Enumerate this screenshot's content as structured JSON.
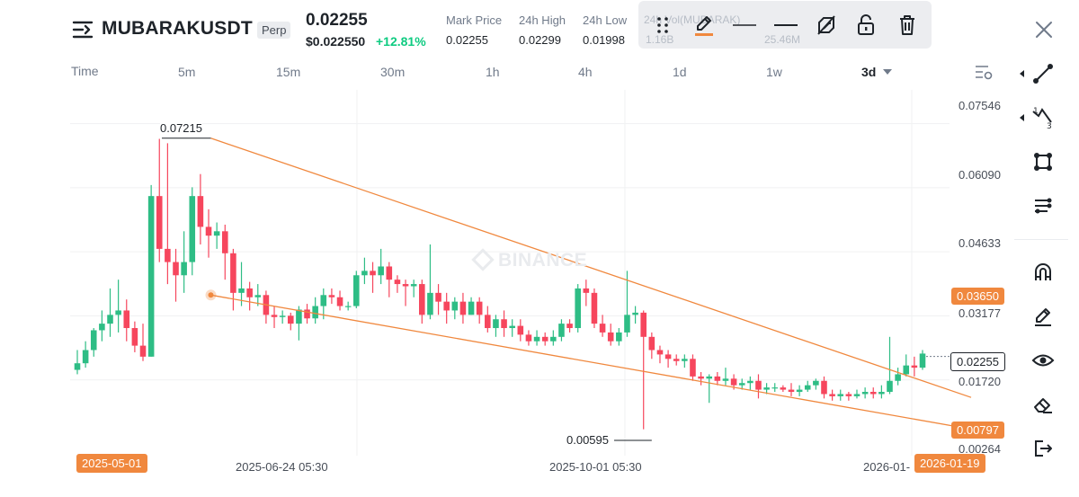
{
  "header": {
    "symbol": "MUBARAKUSDT",
    "contract_type": "Perp",
    "last_price": "0.02255",
    "usd_price": "$0.022550",
    "change_pct": "+12.81%",
    "stats": [
      {
        "label": "Mark Price",
        "value": "0.02255"
      },
      {
        "label": "24h High",
        "value": "0.02299"
      },
      {
        "label": "24h Low",
        "value": "0.01998"
      }
    ],
    "hidden_stats": [
      "24h Vol(MUBARAK)",
      "1.16B",
      "25.46M"
    ]
  },
  "intervals": {
    "time_label": "Time",
    "items": [
      "5m",
      "15m",
      "30m",
      "1h",
      "4h",
      "1d",
      "1w",
      "3d"
    ],
    "active": "3d"
  },
  "drawing_toolbar": [
    "drag-handle-icon",
    "pencil-icon",
    "line-style-icon",
    "line-width-icon",
    "hide-drawing-icon",
    "unlock-icon",
    "trash-icon"
  ],
  "right_toolbar": [
    "trend-line-icon",
    "fibonacci-icon",
    "rectangle-icon",
    "brush-icon",
    "magnet-icon",
    "pencil-icon",
    "eye-icon",
    "eraser-icon",
    "exit-icon"
  ],
  "chart": {
    "watermark": "BINANCE",
    "price_ticks": [
      "0.07546",
      "0.06090",
      "0.04633",
      "0.03177",
      "0.01720",
      "0.00264"
    ],
    "price_tags": {
      "upper_line": "0.03650",
      "current": "0.02255",
      "lower_line": "0.00797"
    },
    "date_ticks": [
      "2025-06-24 05:30",
      "2025-10-01 05:30",
      "2026-01-"
    ],
    "date_tags": {
      "start": "2025-05-01",
      "end": "2026-01-19"
    },
    "annotations": {
      "high": "0.07215",
      "low": "0.00595"
    },
    "colors": {
      "up": "#2ebd85",
      "down": "#f6465d",
      "trendline": "#f0883e"
    }
  },
  "chart_data": {
    "type": "candlestick",
    "interval": "3d",
    "x_range": [
      "2025-03-10",
      "2026-01-19"
    ],
    "ylim": [
      0.0,
      0.0815
    ],
    "candles": [
      [
        0.0195,
        0.021,
        0.024,
        0.0185
      ],
      [
        0.021,
        0.024,
        0.026,
        0.02
      ],
      [
        0.024,
        0.0285,
        0.029,
        0.0225
      ],
      [
        0.0285,
        0.03,
        0.033,
        0.026
      ],
      [
        0.03,
        0.032,
        0.038,
        0.027
      ],
      [
        0.032,
        0.033,
        0.04,
        0.028
      ],
      [
        0.033,
        0.029,
        0.0355,
        0.026
      ],
      [
        0.029,
        0.025,
        0.0305,
        0.0235
      ],
      [
        0.025,
        0.0225,
        0.03,
        0.0215
      ],
      [
        0.0225,
        0.059,
        0.0615,
        0.0225
      ],
      [
        0.059,
        0.047,
        0.072,
        0.044
      ],
      [
        0.047,
        0.044,
        0.071,
        0.039
      ],
      [
        0.044,
        0.041,
        0.047,
        0.035
      ],
      [
        0.041,
        0.044,
        0.051,
        0.037
      ],
      [
        0.044,
        0.059,
        0.061,
        0.041
      ],
      [
        0.059,
        0.052,
        0.064,
        0.048
      ],
      [
        0.052,
        0.05,
        0.056,
        0.045
      ],
      [
        0.05,
        0.051,
        0.053,
        0.047
      ],
      [
        0.051,
        0.046,
        0.0525,
        0.04
      ],
      [
        0.046,
        0.037,
        0.047,
        0.033
      ],
      [
        0.037,
        0.038,
        0.044,
        0.034
      ],
      [
        0.038,
        0.036,
        0.0395,
        0.033
      ],
      [
        0.036,
        0.0365,
        0.039,
        0.034
      ],
      [
        0.0365,
        0.032,
        0.0375,
        0.03
      ],
      [
        0.032,
        0.0315,
        0.034,
        0.029
      ],
      [
        0.0315,
        0.0318,
        0.033,
        0.03
      ],
      [
        0.0318,
        0.03,
        0.0325,
        0.0285
      ],
      [
        0.03,
        0.0332,
        0.034,
        0.0262
      ],
      [
        0.0332,
        0.0312,
        0.0345,
        0.03
      ],
      [
        0.0312,
        0.034,
        0.036,
        0.03
      ],
      [
        0.034,
        0.0365,
        0.038,
        0.031
      ],
      [
        0.0365,
        0.036,
        0.038,
        0.0345
      ],
      [
        0.036,
        0.034,
        0.0375,
        0.033
      ],
      [
        0.034,
        0.034,
        0.035,
        0.033
      ],
      [
        0.034,
        0.041,
        0.042,
        0.0335
      ],
      [
        0.041,
        0.042,
        0.045,
        0.039
      ],
      [
        0.042,
        0.041,
        0.044,
        0.037
      ],
      [
        0.041,
        0.043,
        0.047,
        0.039
      ],
      [
        0.043,
        0.04,
        0.044,
        0.036
      ],
      [
        0.04,
        0.039,
        0.041,
        0.037
      ],
      [
        0.039,
        0.0385,
        0.04,
        0.034
      ],
      [
        0.0385,
        0.039,
        0.04,
        0.036
      ],
      [
        0.039,
        0.032,
        0.04,
        0.03
      ],
      [
        0.032,
        0.037,
        0.048,
        0.031
      ],
      [
        0.037,
        0.035,
        0.039,
        0.032
      ],
      [
        0.035,
        0.033,
        0.037,
        0.03
      ],
      [
        0.033,
        0.035,
        0.036,
        0.031
      ],
      [
        0.035,
        0.032,
        0.037,
        0.03
      ],
      [
        0.032,
        0.035,
        0.036,
        0.032
      ],
      [
        0.035,
        0.032,
        0.036,
        0.03
      ],
      [
        0.032,
        0.029,
        0.034,
        0.028
      ],
      [
        0.029,
        0.031,
        0.032,
        0.027
      ],
      [
        0.031,
        0.029,
        0.033,
        0.027
      ],
      [
        0.029,
        0.0295,
        0.031,
        0.027
      ],
      [
        0.0295,
        0.0275,
        0.031,
        0.026
      ],
      [
        0.0275,
        0.026,
        0.0285,
        0.025
      ],
      [
        0.026,
        0.027,
        0.0285,
        0.025
      ],
      [
        0.027,
        0.026,
        0.028,
        0.025
      ],
      [
        0.026,
        0.027,
        0.0285,
        0.025
      ],
      [
        0.027,
        0.03,
        0.031,
        0.026
      ],
      [
        0.03,
        0.029,
        0.031,
        0.028
      ],
      [
        0.029,
        0.038,
        0.039,
        0.028
      ],
      [
        0.038,
        0.037,
        0.04,
        0.034
      ],
      [
        0.037,
        0.03,
        0.038,
        0.029
      ],
      [
        0.03,
        0.028,
        0.032,
        0.027
      ],
      [
        0.028,
        0.026,
        0.03,
        0.025
      ],
      [
        0.026,
        0.028,
        0.029,
        0.025
      ],
      [
        0.028,
        0.032,
        0.042,
        0.027
      ],
      [
        0.032,
        0.0325,
        0.034,
        0.03
      ],
      [
        0.0325,
        0.027,
        0.033,
        0.006
      ],
      [
        0.027,
        0.024,
        0.028,
        0.022
      ],
      [
        0.024,
        0.023,
        0.025,
        0.021
      ],
      [
        0.023,
        0.022,
        0.024,
        0.02
      ],
      [
        0.022,
        0.0215,
        0.023,
        0.0205
      ],
      [
        0.0215,
        0.022,
        0.023,
        0.02
      ],
      [
        0.022,
        0.018,
        0.023,
        0.017
      ],
      [
        0.018,
        0.0175,
        0.019,
        0.016
      ],
      [
        0.0175,
        0.018,
        0.0185,
        0.012
      ],
      [
        0.018,
        0.017,
        0.019,
        0.016
      ],
      [
        0.017,
        0.0175,
        0.02,
        0.016
      ],
      [
        0.0175,
        0.016,
        0.0185,
        0.015
      ],
      [
        0.016,
        0.0165,
        0.0175,
        0.015
      ],
      [
        0.0165,
        0.017,
        0.018,
        0.015
      ],
      [
        0.017,
        0.015,
        0.0185,
        0.013
      ],
      [
        0.015,
        0.0155,
        0.0165,
        0.014
      ],
      [
        0.0155,
        0.0155,
        0.0165,
        0.0145
      ],
      [
        0.0155,
        0.015,
        0.016,
        0.0145
      ],
      [
        0.015,
        0.0145,
        0.0165,
        0.0135
      ],
      [
        0.0145,
        0.015,
        0.016,
        0.0135
      ],
      [
        0.015,
        0.016,
        0.017,
        0.0145
      ],
      [
        0.016,
        0.017,
        0.0175,
        0.015
      ],
      [
        0.017,
        0.014,
        0.018,
        0.013
      ],
      [
        0.014,
        0.0135,
        0.015,
        0.0125
      ],
      [
        0.0135,
        0.014,
        0.015,
        0.0125
      ],
      [
        0.014,
        0.0135,
        0.0145,
        0.0125
      ],
      [
        0.0135,
        0.014,
        0.015,
        0.013
      ],
      [
        0.014,
        0.0145,
        0.0155,
        0.013
      ],
      [
        0.0145,
        0.014,
        0.0155,
        0.013
      ],
      [
        0.014,
        0.0145,
        0.016,
        0.013
      ],
      [
        0.0145,
        0.017,
        0.027,
        0.014
      ],
      [
        0.017,
        0.0185,
        0.02,
        0.016
      ],
      [
        0.0185,
        0.0205,
        0.023,
        0.018
      ],
      [
        0.0205,
        0.02,
        0.0225,
        0.018
      ],
      [
        0.02,
        0.0232,
        0.024,
        0.0195
      ]
    ],
    "trend_lines": [
      {
        "from": [
          "2025-05-01",
          0.07215
        ],
        "to": [
          "2026-01-19",
          0.017
        ]
      },
      {
        "from": [
          "2025-05-01",
          0.0365
        ],
        "to": [
          "2026-01-19",
          0.00797
        ]
      }
    ],
    "current_price": 0.02255
  }
}
